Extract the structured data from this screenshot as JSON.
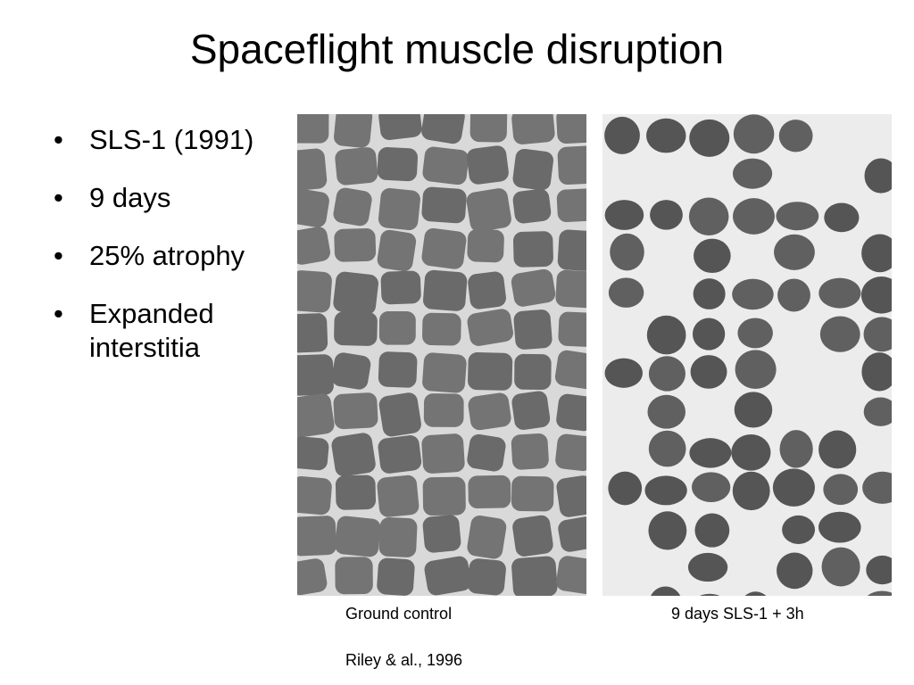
{
  "header": {
    "title": "Spaceflight muscle disruption"
  },
  "bullets": [
    "SLS-1 (1991)",
    "9 days",
    "25% atrophy",
    "Expanded interstitia"
  ],
  "figure": {
    "captions": [
      "Ground control",
      "9 days SLS-1 + 3h"
    ],
    "citation": "Riley & al., 1996"
  }
}
